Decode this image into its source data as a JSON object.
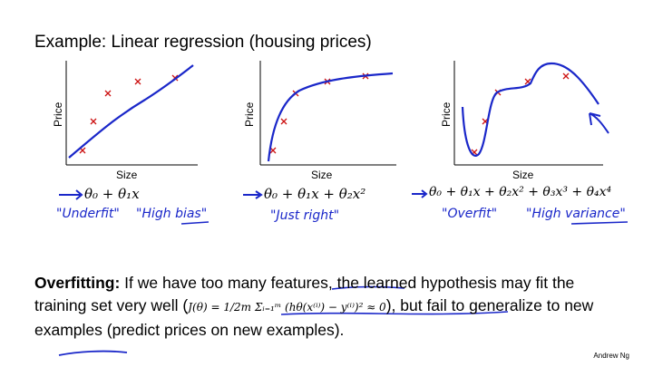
{
  "slide": {
    "title": "Example: Linear regression (housing prices)",
    "axis_x_label": "Size",
    "axis_y_label": "Price",
    "panels": [
      {
        "equation": "θ₀ + θ₁x",
        "notes": [
          "\"Underfit\"",
          "\"High bias\""
        ]
      },
      {
        "equation": "θ₀ + θ₁x + θ₂x²",
        "notes": [
          "\"Just right\""
        ]
      },
      {
        "equation": "θ₀ + θ₁x + θ₂x² + θ₃x³ + θ₄x⁴",
        "notes": [
          "\"Overfit\"",
          "\"High variance\""
        ]
      }
    ],
    "overfitting": {
      "term": "Overfitting:",
      "text_1": " If we have too many features, the learned hypothesis may fit the training set very well (",
      "formula": "J(θ) = 1/2m Σᵢ₌₁ᵐ (hθ(x⁽ⁱ⁾) − y⁽ⁱ⁾)² ≈ 0",
      "text_2": "), but fail to generalize to new examples (predict prices on new examples)."
    },
    "credit": "Andrew Ng",
    "colors": {
      "data_point": "#cc1111",
      "ink": "#1a27c9"
    }
  }
}
